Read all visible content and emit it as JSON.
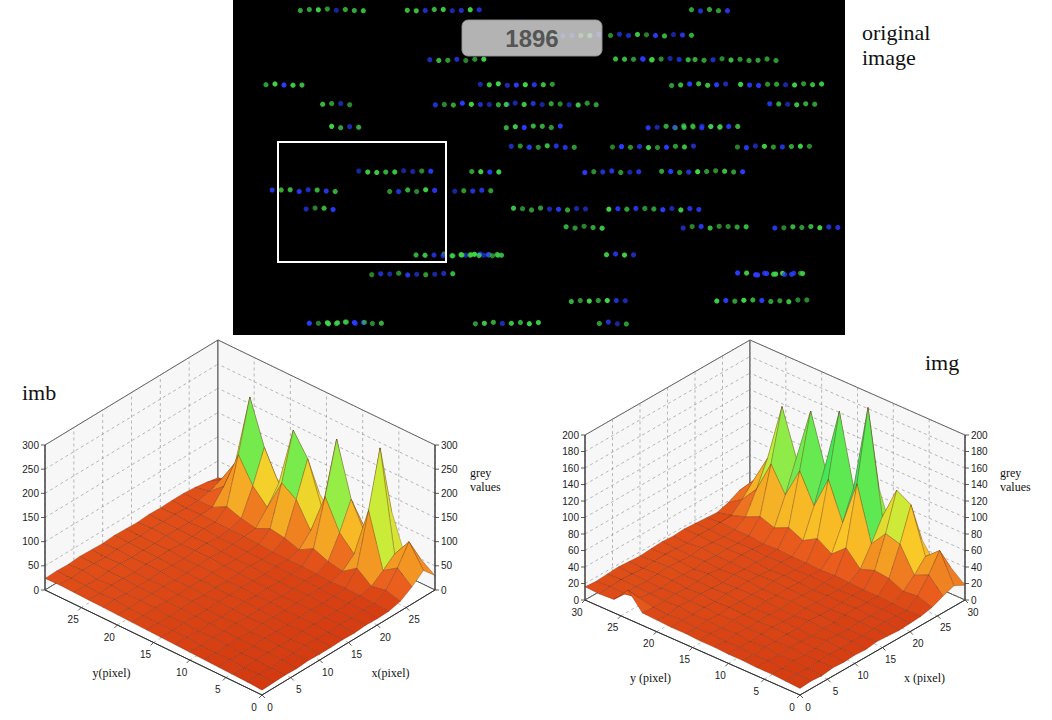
{
  "image": {
    "label": "original image",
    "watermark": "1896"
  },
  "chart_data": [
    {
      "type": "surface",
      "title": "imb",
      "xlabel": "x(pixel)",
      "ylabel": "y(pixel)",
      "zlabel": "grey values",
      "xlim": [
        0,
        30
      ],
      "ylim": [
        0,
        30
      ],
      "zlim": [
        0,
        300
      ],
      "xticks": [
        0,
        5,
        10,
        15,
        20,
        25
      ],
      "yticks": [
        0,
        5,
        10,
        15,
        20,
        25
      ],
      "zticks": [
        0,
        50,
        100,
        150,
        200,
        250,
        300
      ],
      "x": [
        0,
        2,
        4,
        6,
        8,
        10,
        12,
        14,
        16,
        18,
        20,
        22,
        24,
        26,
        28,
        30
      ],
      "y": [
        0,
        2,
        4,
        6,
        8,
        10,
        12,
        14,
        16,
        18,
        20,
        22,
        24,
        26,
        28,
        30
      ],
      "z": [
        [
          10,
          11,
          12,
          11,
          13,
          12,
          12,
          13,
          12,
          14,
          13,
          14,
          20,
          35,
          55,
          30
        ],
        [
          12,
          13,
          12,
          14,
          13,
          15,
          14,
          13,
          15,
          14,
          16,
          15,
          28,
          60,
          100,
          50
        ],
        [
          13,
          12,
          14,
          15,
          14,
          13,
          15,
          16,
          14,
          15,
          16,
          17,
          22,
          40,
          60,
          35
        ],
        [
          14,
          15,
          13,
          14,
          16,
          15,
          14,
          16,
          17,
          15,
          16,
          18,
          45,
          150,
          265,
          120
        ],
        [
          15,
          14,
          16,
          15,
          14,
          17,
          16,
          15,
          16,
          18,
          17,
          16,
          24,
          45,
          70,
          40
        ],
        [
          16,
          15,
          17,
          16,
          18,
          16,
          17,
          18,
          16,
          17,
          19,
          18,
          30,
          75,
          130,
          65
        ],
        [
          17,
          18,
          16,
          17,
          16,
          18,
          19,
          17,
          18,
          17,
          18,
          20,
          42,
          135,
          240,
          110
        ],
        [
          18,
          17,
          19,
          18,
          17,
          19,
          18,
          20,
          19,
          18,
          20,
          19,
          25,
          50,
          80,
          45
        ],
        [
          19,
          18,
          17,
          19,
          20,
          18,
          19,
          18,
          20,
          21,
          19,
          20,
          35,
          100,
          170,
          85
        ],
        [
          20,
          19,
          21,
          20,
          19,
          21,
          20,
          22,
          21,
          20,
          21,
          22,
          40,
          120,
          215,
          100
        ],
        [
          21,
          20,
          22,
          21,
          22,
          20,
          21,
          22,
          23,
          21,
          22,
          23,
          26,
          55,
          90,
          45
        ],
        [
          22,
          23,
          21,
          22,
          21,
          23,
          22,
          21,
          23,
          24,
          22,
          23,
          32,
          85,
          150,
          75
        ],
        [
          23,
          22,
          24,
          23,
          22,
          24,
          23,
          24,
          22,
          23,
          25,
          24,
          42,
          135,
          240,
          110
        ],
        [
          24,
          23,
          22,
          24,
          25,
          23,
          24,
          23,
          25,
          24,
          23,
          25,
          26,
          55,
          90,
          45
        ],
        [
          25,
          24,
          26,
          25,
          24,
          26,
          25,
          24,
          26,
          25,
          26,
          24,
          25,
          30,
          40,
          25
        ],
        [
          24,
          25,
          24,
          26,
          25,
          24,
          26,
          25,
          24,
          26,
          25,
          26,
          26,
          24,
          20,
          15
        ]
      ]
    },
    {
      "type": "surface",
      "title": "img",
      "xlabel": "x (pixel)",
      "ylabel": "y (pixel)",
      "zlabel": "grey values",
      "xlim": [
        0,
        30
      ],
      "ylim": [
        0,
        30
      ],
      "zlim": [
        0,
        200
      ],
      "xticks": [
        0,
        5,
        10,
        15,
        20,
        25,
        30
      ],
      "yticks": [
        0,
        5,
        10,
        15,
        20,
        25,
        30
      ],
      "zticks": [
        0,
        20,
        40,
        60,
        80,
        100,
        120,
        140,
        160,
        180,
        200
      ],
      "x": [
        0,
        2,
        4,
        6,
        8,
        10,
        12,
        14,
        16,
        18,
        20,
        22,
        24,
        26,
        28,
        30
      ],
      "y": [
        0,
        2,
        4,
        6,
        8,
        10,
        12,
        14,
        16,
        18,
        20,
        22,
        24,
        26,
        28,
        30
      ],
      "z": [
        [
          8,
          9,
          8,
          10,
          9,
          10,
          9,
          11,
          10,
          9,
          10,
          11,
          14,
          20,
          25,
          18
        ],
        [
          9,
          10,
          9,
          10,
          11,
          10,
          11,
          10,
          11,
          12,
          11,
          10,
          20,
          38,
          60,
          32
        ],
        [
          10,
          9,
          11,
          10,
          10,
          12,
          11,
          10,
          12,
          11,
          12,
          11,
          18,
          30,
          45,
          26
        ],
        [
          10,
          11,
          10,
          12,
          11,
          10,
          12,
          11,
          12,
          13,
          12,
          12,
          26,
          60,
          100,
          50
        ],
        [
          11,
          10,
          12,
          11,
          12,
          11,
          13,
          12,
          11,
          12,
          13,
          12,
          28,
          65,
          110,
          55
        ],
        [
          11,
          12,
          11,
          12,
          13,
          12,
          11,
          13,
          12,
          13,
          12,
          13,
          22,
          45,
          70,
          38
        ],
        [
          12,
          11,
          13,
          12,
          12,
          13,
          12,
          14,
          13,
          12,
          13,
          14,
          40,
          110,
          195,
          90
        ],
        [
          12,
          13,
          12,
          14,
          13,
          12,
          14,
          13,
          14,
          13,
          14,
          13,
          25,
          55,
          90,
          46
        ],
        [
          13,
          12,
          14,
          13,
          14,
          13,
          14,
          13,
          15,
          14,
          13,
          14,
          36,
          100,
          175,
          82
        ],
        [
          13,
          14,
          13,
          14,
          13,
          15,
          14,
          15,
          14,
          13,
          15,
          14,
          26,
          60,
          100,
          50
        ],
        [
          14,
          13,
          15,
          14,
          15,
          14,
          13,
          15,
          14,
          15,
          14,
          15,
          34,
          95,
          160,
          78
        ],
        [
          15,
          14,
          14,
          15,
          14,
          15,
          16,
          14,
          15,
          16,
          15,
          14,
          26,
          58,
          95,
          48
        ],
        [
          35,
          18,
          15,
          14,
          16,
          15,
          14,
          16,
          15,
          16,
          15,
          16,
          32,
          88,
          150,
          72
        ],
        [
          16,
          15,
          16,
          15,
          16,
          17,
          16,
          15,
          17,
          16,
          15,
          16,
          24,
          50,
          80,
          42
        ],
        [
          15,
          16,
          17,
          16,
          15,
          16,
          17,
          16,
          15,
          17,
          16,
          17,
          18,
          30,
          45,
          26
        ],
        [
          16,
          15,
          16,
          17,
          16,
          15,
          16,
          17,
          16,
          17,
          16,
          15,
          14,
          18,
          25,
          16
        ]
      ]
    }
  ]
}
